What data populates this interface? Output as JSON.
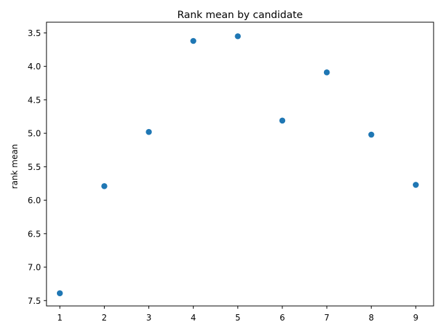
{
  "chart_data": {
    "type": "scatter",
    "title": "Rank mean by candidate",
    "xlabel": "",
    "ylabel": "rank mean",
    "x": [
      1,
      2,
      3,
      4,
      5,
      6,
      7,
      8,
      9
    ],
    "y": [
      7.39,
      5.79,
      4.98,
      3.62,
      3.55,
      4.81,
      4.09,
      5.02,
      5.77
    ],
    "xlim": [
      0.7,
      9.4
    ],
    "ylim": [
      7.58,
      3.34
    ],
    "y_inverted": true,
    "xticks": [
      1,
      2,
      3,
      4,
      5,
      6,
      7,
      8,
      9
    ],
    "yticks": [
      3.5,
      4.0,
      4.5,
      5.0,
      5.5,
      6.0,
      6.5,
      7.0,
      7.5
    ],
    "ytick_labels": [
      "3.5",
      "4.0",
      "4.5",
      "5.0",
      "5.5",
      "6.0",
      "6.5",
      "7.0",
      "7.5"
    ],
    "grid": false,
    "marker_color": "#1f77b4"
  }
}
